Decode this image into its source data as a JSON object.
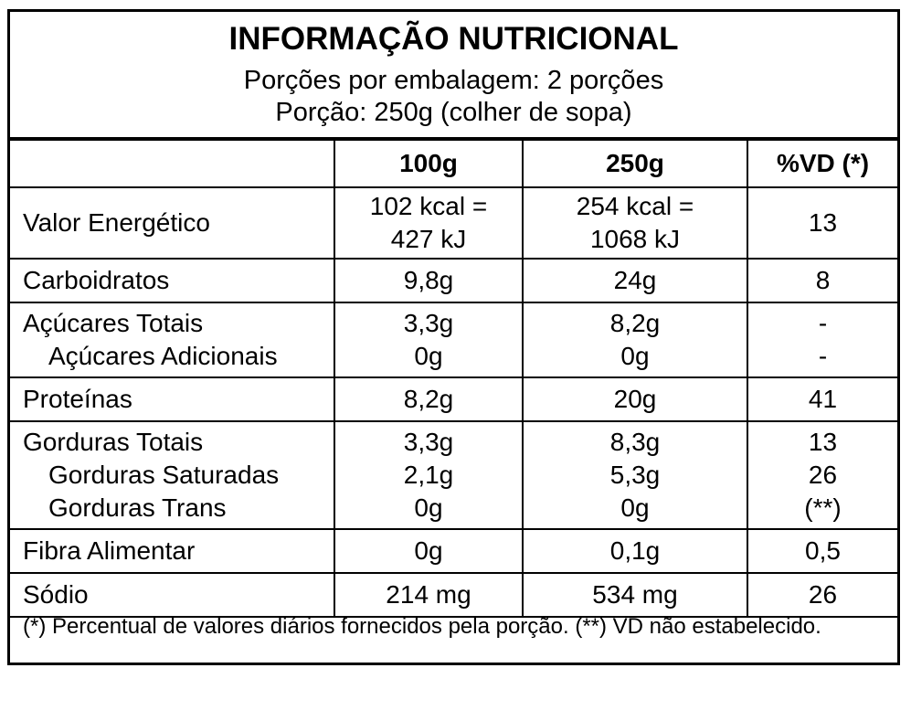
{
  "header": {
    "title": "INFORMAÇÃO NUTRICIONAL",
    "servings_per_package": "Porções por embalagem: 2 porções",
    "serving_size": "Porção: 250g (colher de sopa)"
  },
  "columns": [
    "",
    "100g",
    "250g",
    "%VD (*)"
  ],
  "rows": {
    "energy": {
      "label": "Valor Energético",
      "c100_line1": "102 kcal =",
      "c100_line2": "427 kJ",
      "c250_line1": "254 kcal =",
      "c250_line2": "1068 kJ",
      "vd": "13"
    },
    "carbs": {
      "label": "Carboidratos",
      "c100": "9,8g",
      "c250": "24g",
      "vd": "8"
    },
    "sugars_total": {
      "label": "Açúcares Totais",
      "c100": "3,3g",
      "c250": "8,2g",
      "vd": "-"
    },
    "sugars_added": {
      "label": "Açúcares Adicionais",
      "c100": "0g",
      "c250": "0g",
      "vd": "-"
    },
    "protein": {
      "label": "Proteínas",
      "c100": "8,2g",
      "c250": "20g",
      "vd": "41"
    },
    "fat_total": {
      "label": "Gorduras Totais",
      "c100": "3,3g",
      "c250": "8,3g",
      "vd": "13"
    },
    "fat_saturated": {
      "label": "Gorduras Saturadas",
      "c100": "2,1g",
      "c250": "5,3g",
      "vd": "26"
    },
    "fat_trans": {
      "label": "Gorduras Trans",
      "c100": "0g",
      "c250": "0g",
      "vd": "(**)"
    },
    "fiber": {
      "label": "Fibra Alimentar",
      "c100": "0g",
      "c250": "0,1g",
      "vd": "0,5"
    },
    "sodium": {
      "label": "Sódio",
      "c100": "214 mg",
      "c250": "534 mg",
      "vd": "26"
    }
  },
  "footnote": "(*) Percentual de valores diários fornecidos pela porção. (**) VD não estabelecido."
}
